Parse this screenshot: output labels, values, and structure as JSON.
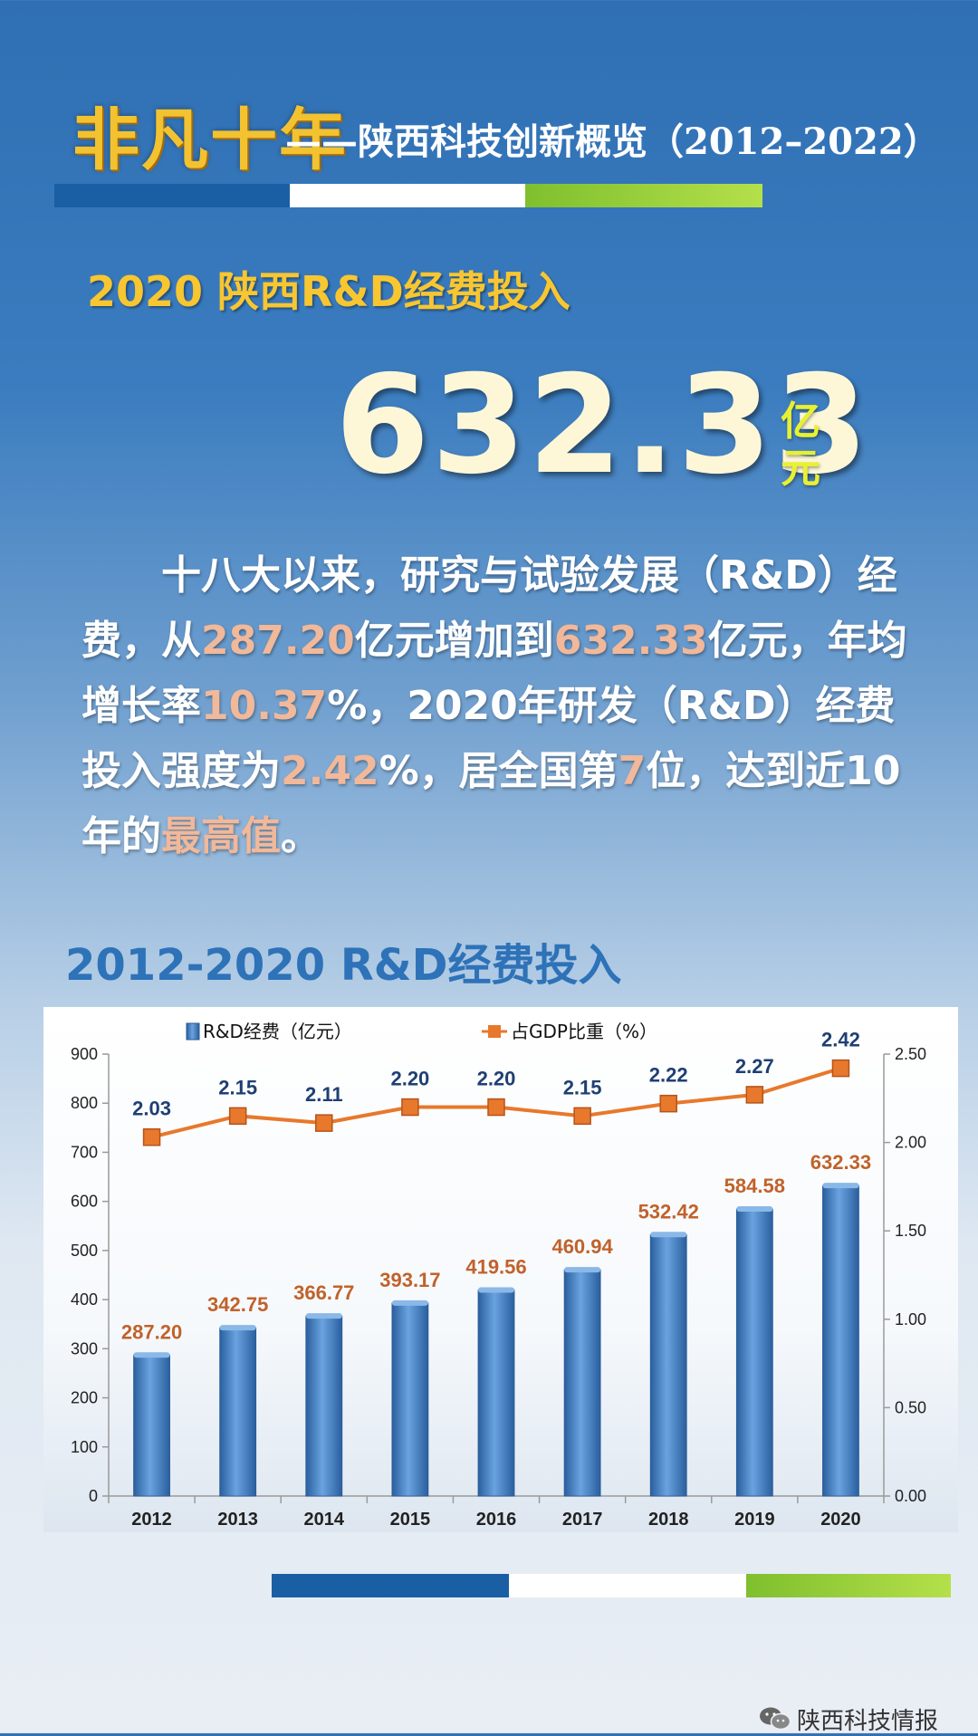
{
  "header": {
    "logo_text": "非凡十年",
    "subtitle": "——陕西科技创新概览（2012–2022）"
  },
  "section_title": "2020 陕西R&D经费投入",
  "headline": {
    "value": "632.33",
    "unit": "亿元"
  },
  "body": {
    "p1": "十八大以来，研究与试验发展（R&D）经费，从",
    "h1": "287.20",
    "p2": "亿元增加到",
    "h2": "632.33",
    "p3": "亿元，年均增长率",
    "h3": "10.37",
    "p4": "%，2020年研发（R&D）经费投入强度为",
    "h4": "2.42",
    "p5": "%，居全国第",
    "h5": "7",
    "p6": "位，达到近10年的",
    "h6": "最高值",
    "p7": "。"
  },
  "chart_title": "2012-2020 R&D经费投入",
  "colors": {
    "bar": "#3d7cc4",
    "line": "#e8782c",
    "bar_label": "#c0622a",
    "line_label": "#1f3f73",
    "stripe_blue": "#1a5fa3",
    "stripe_white": "#ffffff",
    "stripe_green": "#9ed435"
  },
  "chart_data": {
    "type": "bar",
    "categories": [
      "2012",
      "2013",
      "2014",
      "2015",
      "2016",
      "2017",
      "2018",
      "2019",
      "2020"
    ],
    "series": [
      {
        "name": "R&D经费（亿元）",
        "type": "bar",
        "axis": "left",
        "values": [
          287.2,
          342.75,
          366.77,
          393.17,
          419.56,
          460.94,
          532.42,
          584.58,
          632.33
        ],
        "labels": [
          "287.20",
          "342.75",
          "366.77",
          "393.17",
          "419.56",
          "460.94",
          "532.42",
          "584.58",
          "632.33"
        ]
      },
      {
        "name": "占GDP比重（%）",
        "type": "line",
        "axis": "right",
        "values": [
          2.03,
          2.15,
          2.11,
          2.2,
          2.2,
          2.15,
          2.22,
          2.27,
          2.42
        ],
        "labels": [
          "2.03",
          "2.15",
          "2.11",
          "2.20",
          "2.20",
          "2.15",
          "2.22",
          "2.27",
          "2.42"
        ]
      }
    ],
    "y_left": {
      "min": 0,
      "max": 900,
      "ticks": [
        "0",
        "100",
        "200",
        "300",
        "400",
        "500",
        "600",
        "700",
        "800",
        "900"
      ]
    },
    "y_right": {
      "min": 0,
      "max": 2.5,
      "ticks": [
        "0.00",
        "0.50",
        "1.00",
        "1.50",
        "2.00",
        "2.50"
      ]
    },
    "legend": "top"
  },
  "watermark": {
    "text": "陕西科技情报",
    "icon": "wechat-icon"
  }
}
